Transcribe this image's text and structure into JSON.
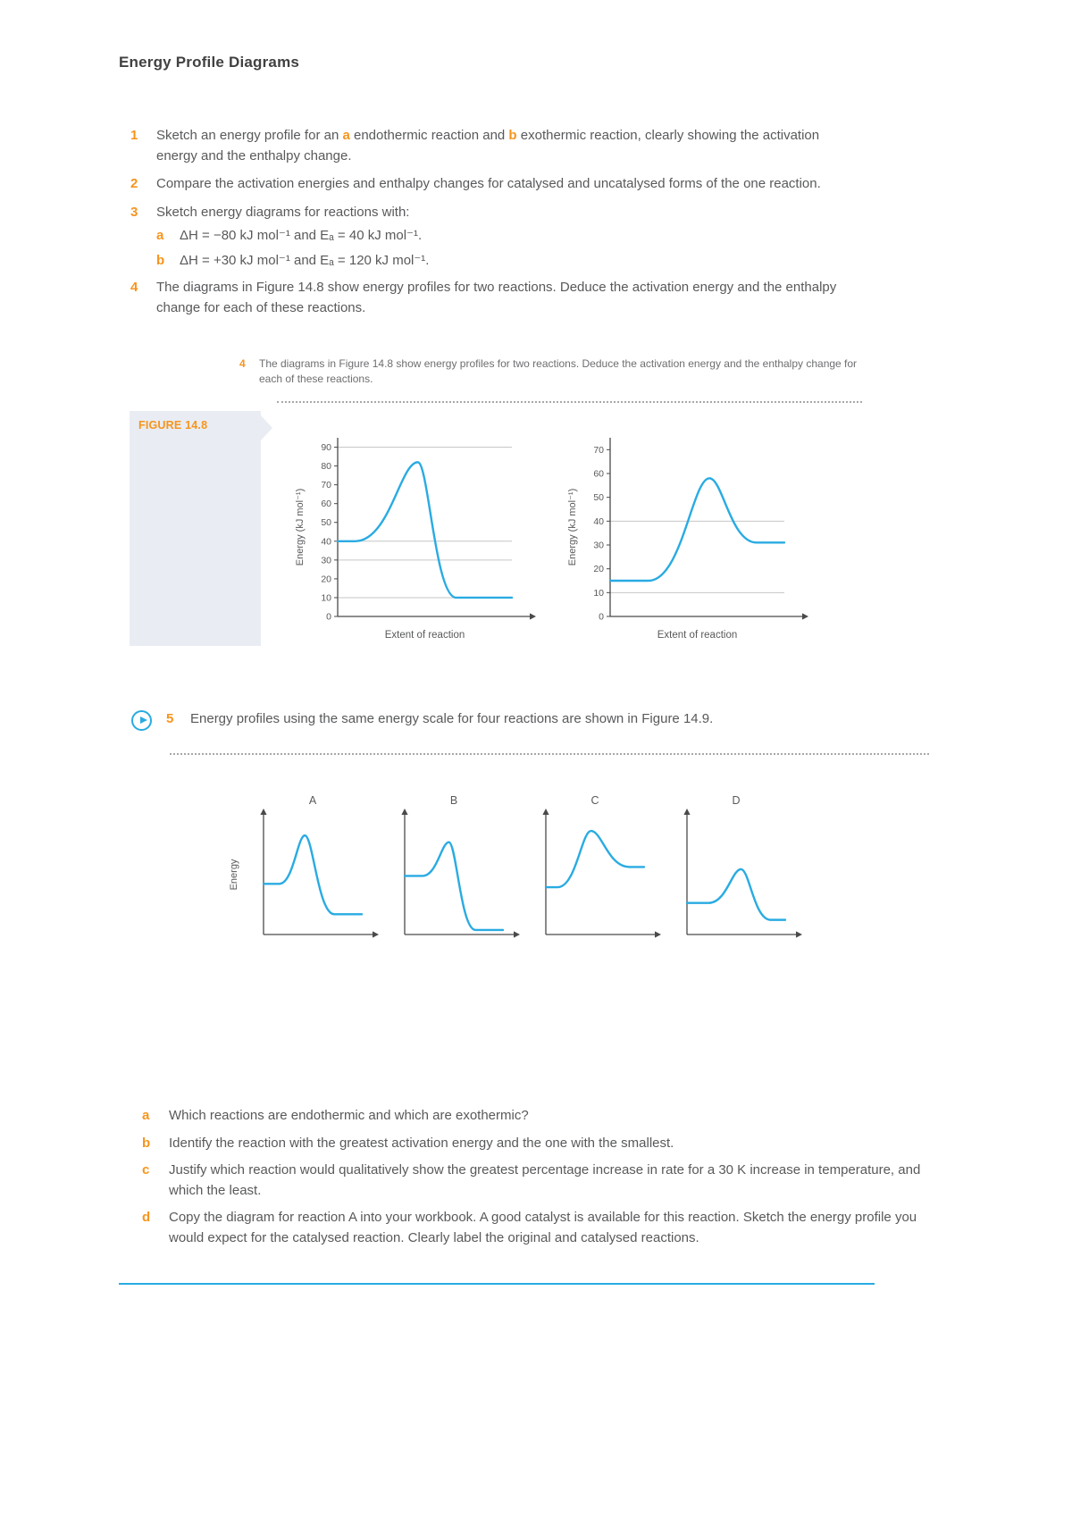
{
  "page": {
    "title": "Energy Profile Diagrams"
  },
  "colors": {
    "accent_orange": "#f7941d",
    "curve_cyan": "#29abe2",
    "body_text": "#58595b",
    "figure_box_bg": "#e9edf3"
  },
  "questions": {
    "q1": {
      "num": "1",
      "p1": "Sketch an energy profile for an ",
      "a": "a",
      "p2": " endothermic reaction and ",
      "b": "b",
      "p3": " exothermic reaction, clearly showing the activation energy and the enthalpy change."
    },
    "q2": {
      "num": "2",
      "text": "Compare the activation energies and enthalpy changes for catalysed and uncatalysed forms of the one reaction."
    },
    "q3": {
      "num": "3",
      "text": "Sketch energy diagrams for reactions with:",
      "a_label": "a",
      "a_text": "ΔH = −80 kJ mol⁻¹ and Eₐ = 40 kJ mol⁻¹.",
      "b_label": "b",
      "b_text": "ΔH = +30 kJ mol⁻¹ and Eₐ = 120 kJ mol⁻¹."
    },
    "q4": {
      "num": "4",
      "text": "The diagrams in Figure 14.8 show energy profiles for two reactions. Deduce the activation energy and the enthalpy change for each of these reactions."
    },
    "q4_embedded": {
      "num": "4",
      "text": "The diagrams in Figure 14.8 show energy profiles for two reactions. Deduce the activation energy and the enthalpy change for each of these reactions."
    },
    "q5": {
      "num": "5",
      "text": "Energy profiles using the same energy scale for four reactions are shown in Figure 14.9."
    }
  },
  "figure_14_8": {
    "label": "FIGURE 14.8"
  },
  "sub_questions": [
    {
      "label": "a",
      "text": "Which reactions are endothermic and which are exothermic?"
    },
    {
      "label": "b",
      "text": "Identify the reaction with the greatest activation energy and the one with the smallest."
    },
    {
      "label": "c",
      "text": "Justify which reaction would qualitatively show the greatest percentage increase in rate for a 30 K increase in temperature, and which the least."
    },
    {
      "label": "d",
      "text": "Copy the diagram for reaction A into your workbook. A good catalyst is available for this reaction. Sketch the energy profile you would expect for the catalysed reaction. Clearly label the original and catalysed reactions."
    }
  ],
  "chart_data": [
    {
      "id": "figure-14-8-left",
      "type": "line",
      "subtype": "energy-profile",
      "display": "large",
      "xlabel": "Extent of reaction",
      "ylabel": "Energy (kJ mol⁻¹)",
      "ylim": [
        0,
        95
      ],
      "yticks": [
        0,
        10,
        20,
        30,
        40,
        50,
        60,
        70,
        80,
        90
      ],
      "gridlines": [
        90,
        40,
        30,
        10
      ],
      "grid": "partial-horizontal",
      "legend": "none",
      "profile": {
        "reactant_level": 40,
        "peak": 82,
        "product_level": 10,
        "rise_start_x": 0.1,
        "peak_x": 0.46,
        "fall_end_x": 0.68
      }
    },
    {
      "id": "figure-14-8-right",
      "type": "line",
      "subtype": "energy-profile",
      "display": "large",
      "xlabel": "Extent of reaction",
      "ylabel": "Energy (kJ mol⁻¹)",
      "ylim": [
        0,
        75
      ],
      "yticks": [
        0,
        10,
        20,
        30,
        40,
        50,
        60,
        70
      ],
      "gridlines": [
        40,
        10
      ],
      "grid": "partial-horizontal",
      "legend": "none",
      "profile": {
        "reactant_level": 15,
        "peak": 58,
        "product_level": 31,
        "rise_start_x": 0.22,
        "peak_x": 0.57,
        "fall_end_x": 0.84
      }
    },
    {
      "id": "figure-14-9-A",
      "type": "line",
      "subtype": "energy-profile",
      "display": "small",
      "title": "A",
      "ylabel": "Energy",
      "ylim": [
        0,
        100
      ],
      "profile": {
        "reactant_level": 45,
        "peak": 88,
        "product_level": 18,
        "rise_start_x": 0.16,
        "peak_x": 0.42,
        "fall_end_x": 0.72
      }
    },
    {
      "id": "figure-14-9-B",
      "type": "line",
      "subtype": "energy-profile",
      "display": "small",
      "title": "B",
      "ylim": [
        0,
        100
      ],
      "profile": {
        "reactant_level": 52,
        "peak": 82,
        "product_level": 4,
        "rise_start_x": 0.18,
        "peak_x": 0.45,
        "fall_end_x": 0.72
      }
    },
    {
      "id": "figure-14-9-C",
      "type": "line",
      "subtype": "energy-profile",
      "display": "small",
      "title": "C",
      "ylim": [
        0,
        100
      ],
      "profile": {
        "reactant_level": 42,
        "peak": 92,
        "product_level": 60,
        "rise_start_x": 0.12,
        "peak_x": 0.46,
        "fall_end_x": 0.85
      }
    },
    {
      "id": "figure-14-9-D",
      "type": "line",
      "subtype": "energy-profile",
      "display": "small",
      "title": "D",
      "ylim": [
        0,
        100
      ],
      "profile": {
        "reactant_level": 28,
        "peak": 58,
        "product_level": 13,
        "rise_start_x": 0.22,
        "peak_x": 0.55,
        "fall_end_x": 0.85
      }
    }
  ]
}
